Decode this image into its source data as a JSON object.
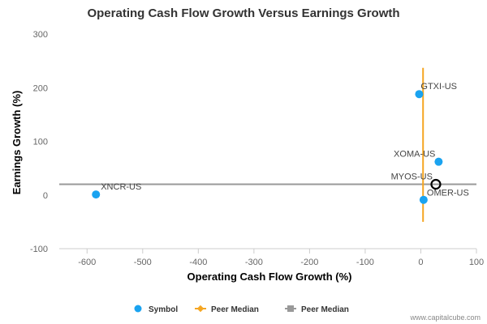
{
  "chart_data": {
    "type": "scatter",
    "title": "Operating Cash Flow Growth Versus Earnings Growth",
    "xlabel": "Operating Cash Flow Growth (%)",
    "ylabel": "Earnings Growth (%)",
    "xlim": [
      -650,
      100
    ],
    "ylim": [
      -100,
      300
    ],
    "x_ticks": [
      -600,
      -500,
      -400,
      -300,
      -200,
      -100,
      0,
      100
    ],
    "y_ticks": [
      -100,
      0,
      100,
      200,
      300
    ],
    "grid": false,
    "legend_position": "bottom",
    "points": [
      {
        "label": "XNCR-US",
        "x": -584,
        "y": 1,
        "highlight": false
      },
      {
        "label": "GTXI-US",
        "x": -3,
        "y": 188,
        "highlight": false
      },
      {
        "label": "XOMA-US",
        "x": 32,
        "y": 62,
        "highlight": false
      },
      {
        "label": "MYOS-US",
        "x": 27,
        "y": 20,
        "highlight": true
      },
      {
        "label": "OMER-US",
        "x": 5,
        "y": -9,
        "highlight": false
      }
    ],
    "peer_median_x": {
      "x": 4,
      "y_range": [
        -50,
        237
      ]
    },
    "peer_median_y": {
      "y": 20,
      "x_range": [
        -650,
        100
      ]
    },
    "legend": [
      {
        "label": "Symbol",
        "kind": "symbol"
      },
      {
        "label": "Peer Median",
        "kind": "vertical-median"
      },
      {
        "label": "Peer Median",
        "kind": "horizontal-median"
      }
    ],
    "colors": {
      "symbol": "#1aa3f0",
      "peer_median_x": "#f5a623",
      "peer_median_y": "#999999",
      "axis": "#cccccc",
      "highlight_ring": "#000000"
    }
  },
  "watermark": "www.capitalcube.com"
}
